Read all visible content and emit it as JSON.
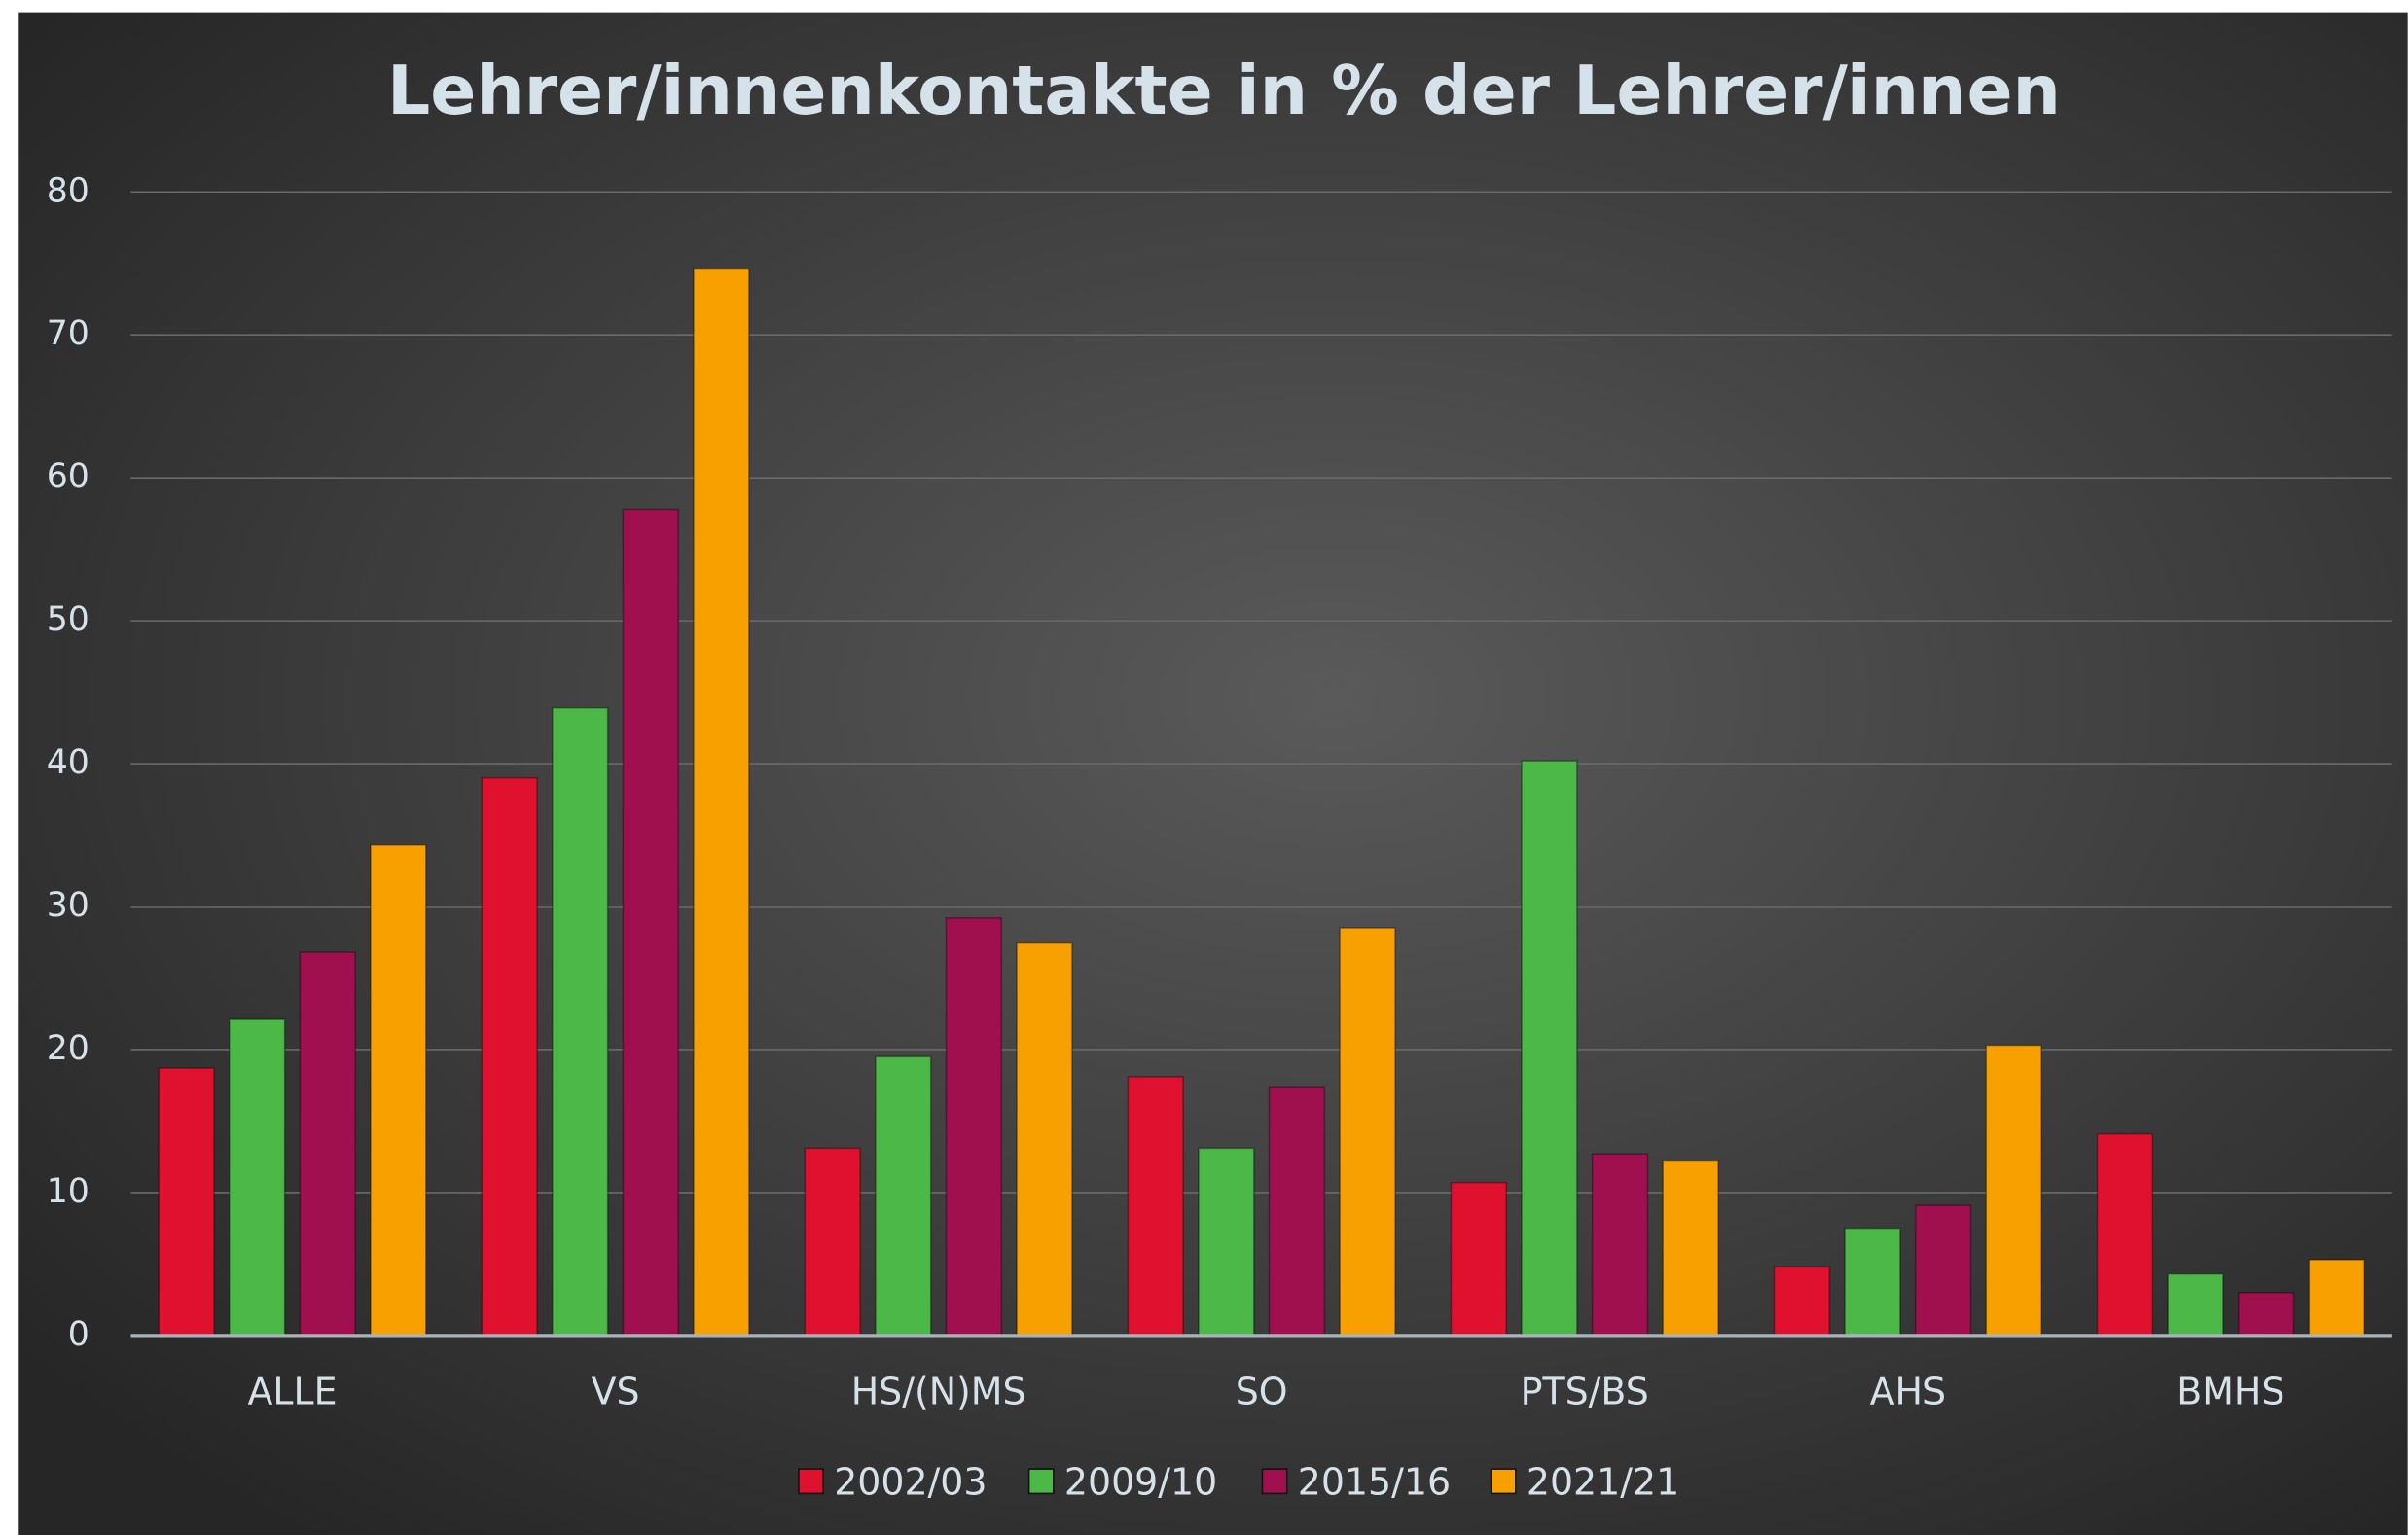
{
  "chart_data": {
    "type": "bar",
    "title": "Lehrer/innenkontakte in % der Lehrer/innen",
    "categories": [
      "ALLE",
      "VS",
      "HS/(N)MS",
      "SO",
      "PTS/BS",
      "AHS",
      "BMHS"
    ],
    "series": [
      {
        "name": "2002/03",
        "color": "#e0102f",
        "values": [
          18.7,
          39,
          13.1,
          18.1,
          10.7,
          4.8,
          14.1
        ]
      },
      {
        "name": "2009/10",
        "color": "#4cb848",
        "values": [
          22.1,
          43.9,
          19.5,
          13.1,
          40.2,
          7.5,
          4.3
        ]
      },
      {
        "name": "2015/16",
        "color": "#a0104e",
        "values": [
          26.8,
          57.8,
          29.2,
          17.4,
          12.7,
          9.1,
          3.0
        ]
      },
      {
        "name": "2021/21",
        "color": "#f7a000",
        "values": [
          34.3,
          74.6,
          27.5,
          28.5,
          12.2,
          20.3,
          5.3
        ]
      }
    ],
    "ylim": [
      0,
      80
    ],
    "yticks": [
      0,
      10,
      20,
      30,
      40,
      50,
      60,
      70,
      80
    ],
    "grid": true,
    "legend": "bottom"
  }
}
